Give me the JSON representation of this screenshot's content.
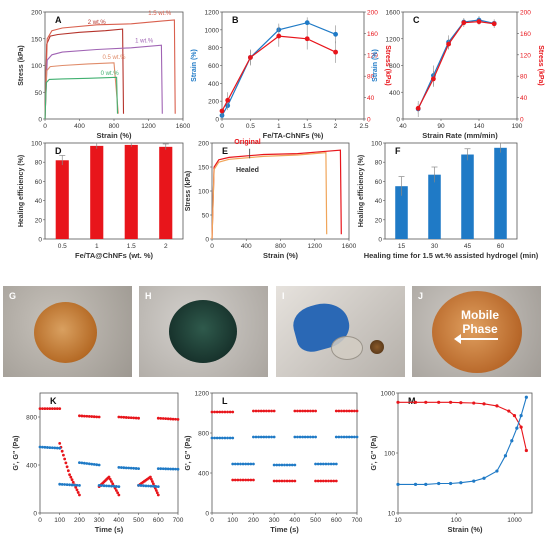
{
  "panel_labels": {
    "A": "A",
    "B": "B",
    "C": "C",
    "D": "D",
    "E": "E",
    "F": "F",
    "G": "G",
    "H": "H",
    "I": "I",
    "J": "J",
    "K": "K",
    "L": "L",
    "M": "M"
  },
  "colors": {
    "red": "#e8151b",
    "blue": "#1f7ac6",
    "orange": "#f0a55a",
    "darkred": "#b5332b"
  },
  "photos": {
    "mobile_phase_text": "Mobile\nPhase",
    "mobile_phase_line1": "Mobile",
    "mobile_phase_line2": "Phase"
  },
  "chart_data": [
    {
      "id": "A",
      "type": "line",
      "title": "",
      "xlabel": "Strain (%)",
      "ylabel": "Stress (kPa)",
      "xlim": [
        0,
        1600
      ],
      "ylim": [
        0,
        200
      ],
      "xticks": [
        0,
        400,
        800,
        1200,
        1600
      ],
      "yticks": [
        0,
        50,
        100,
        150,
        200
      ],
      "series": [
        {
          "name": "2 wt.%",
          "color": "#b5332b",
          "x": [
            0,
            20,
            60,
            150,
            400,
            700,
            900,
            910
          ],
          "y": [
            0,
            140,
            155,
            158,
            162,
            165,
            168,
            10
          ]
        },
        {
          "name": "1.5 wt.%",
          "color": "#d9604e",
          "x": [
            0,
            25,
            80,
            200,
            600,
            1000,
            1350,
            1500,
            1510
          ],
          "y": [
            0,
            150,
            165,
            170,
            176,
            178,
            183,
            185,
            10
          ]
        },
        {
          "name": "1 wt.%",
          "color": "#a064b4",
          "x": [
            0,
            25,
            80,
            200,
            600,
            1000,
            1350,
            1360
          ],
          "y": [
            0,
            110,
            120,
            125,
            130,
            133,
            138,
            10
          ]
        },
        {
          "name": "0.5 wt.%",
          "color": "#e08c6a",
          "x": [
            0,
            20,
            60,
            200,
            500,
            800,
            850
          ],
          "y": [
            0,
            90,
            98,
            100,
            103,
            105,
            10
          ]
        },
        {
          "name": "0 wt.%",
          "color": "#40b070",
          "x": [
            0,
            15,
            50,
            200,
            500,
            830,
            840
          ],
          "y": [
            0,
            68,
            74,
            75,
            76,
            78,
            10
          ]
        }
      ]
    },
    {
      "id": "B",
      "type": "line",
      "title": "",
      "xlabel": "Fe/TA-ChNFs (%)",
      "ylabel": "Strain (%)",
      "ylabel_right": "Stress (kPa)",
      "xlim": [
        0,
        2.5
      ],
      "ylim": [
        0,
        1200
      ],
      "ylim_right": [
        0,
        200
      ],
      "xticks": [
        0,
        0.5,
        1,
        1.5,
        2,
        2.5
      ],
      "xtick_labels": [
        "0",
        "0.5",
        "1",
        "1.5",
        "2",
        "2.5"
      ],
      "yticks": [
        0,
        200,
        400,
        600,
        800,
        1000,
        1200
      ],
      "yticks_right": [
        0,
        40,
        80,
        120,
        160,
        200
      ],
      "series": [
        {
          "name": "Strain",
          "axis": "left",
          "color": "#1f7ac6",
          "x": [
            0,
            0.1,
            0.5,
            1,
            1.5,
            2
          ],
          "y": [
            40,
            150,
            690,
            1000,
            1080,
            950
          ],
          "err": [
            30,
            50,
            80,
            70,
            60,
            100
          ]
        },
        {
          "name": "Stress",
          "axis": "right",
          "color": "#e8151b",
          "x": [
            0,
            0.1,
            0.5,
            1,
            1.5,
            2
          ],
          "y": [
            15,
            35,
            115,
            155,
            150,
            125
          ],
          "err": [
            10,
            15,
            15,
            20,
            20,
            20
          ]
        }
      ]
    },
    {
      "id": "C",
      "type": "line",
      "title": "",
      "xlabel": "Strain Rate (mm/min)",
      "ylabel": "Strain (%)",
      "ylabel_right": "Stress (kPa)",
      "xlim": [
        40,
        190
      ],
      "ylim": [
        0,
        1600
      ],
      "ylim_right": [
        0,
        200
      ],
      "xticks": [
        40,
        90,
        140,
        190
      ],
      "yticks": [
        0,
        400,
        800,
        1200,
        1600
      ],
      "yticks_right": [
        0,
        40,
        80,
        120,
        160,
        200
      ],
      "series": [
        {
          "name": "Strain",
          "axis": "left",
          "color": "#1f7ac6",
          "x": [
            60,
            80,
            100,
            120,
            140,
            160
          ],
          "y": [
            150,
            650,
            1150,
            1450,
            1480,
            1430
          ],
          "err": [
            120,
            150,
            100,
            60,
            60,
            60
          ]
        },
        {
          "name": "Stress",
          "axis": "right",
          "color": "#e8151b",
          "x": [
            60,
            80,
            100,
            120,
            140,
            160
          ],
          "y": [
            20,
            75,
            140,
            180,
            182,
            178
          ],
          "err": [
            10,
            15,
            10,
            8,
            6,
            8
          ]
        }
      ]
    },
    {
      "id": "D",
      "type": "bar",
      "title": "",
      "categories": [
        "0.5",
        "1",
        "1.5",
        "2"
      ],
      "values": [
        82,
        97,
        98,
        96
      ],
      "err": [
        5,
        3,
        2,
        3
      ],
      "xlabel": "Fe/TA@ChNFs (wt. %)",
      "ylabel": "Healing efficiency (%)",
      "ylim": [
        0,
        100
      ],
      "yticks": [
        0,
        20,
        40,
        60,
        80,
        100
      ],
      "color": "#e8151b"
    },
    {
      "id": "E",
      "type": "line",
      "title": "",
      "xlabel": "Strain (%)",
      "ylabel": "Stress (kPa)",
      "xlim": [
        0,
        1600
      ],
      "ylim": [
        0,
        200
      ],
      "xticks": [
        0,
        400,
        800,
        1200,
        1600
      ],
      "yticks": [
        0,
        50,
        100,
        150,
        200
      ],
      "annotations": [
        "Original",
        "Healed"
      ],
      "series": [
        {
          "name": "Original",
          "color": "#e8151b",
          "x": [
            0,
            25,
            80,
            200,
            600,
            1000,
            1350,
            1500,
            1510
          ],
          "y": [
            0,
            150,
            165,
            170,
            176,
            178,
            183,
            185,
            10
          ]
        },
        {
          "name": "Healed",
          "color": "#f0a55a",
          "x": [
            0,
            25,
            80,
            200,
            600,
            1000,
            1330,
            1340
          ],
          "y": [
            0,
            145,
            160,
            166,
            172,
            175,
            180,
            10
          ]
        }
      ]
    },
    {
      "id": "F",
      "type": "bar",
      "title": "",
      "categories": [
        "15",
        "30",
        "45",
        "60"
      ],
      "values": [
        55,
        67,
        88,
        95
      ],
      "err": [
        10,
        8,
        6,
        5
      ],
      "xlabel": "Healing time for 1.5 wt.% assisted hydrogel (min)",
      "ylabel": "Healing efficiency (%)",
      "ylim": [
        0,
        100
      ],
      "yticks": [
        0,
        20,
        40,
        60,
        80,
        100
      ],
      "color": "#1f7ac6"
    },
    {
      "id": "K",
      "type": "scatter",
      "title": "",
      "xlabel": "Time (s)",
      "ylabel": "G', G\" (Pa)",
      "xlim": [
        0,
        700
      ],
      "ylim": [
        0,
        1000
      ],
      "xticks": [
        0,
        100,
        200,
        300,
        400,
        500,
        600,
        700
      ],
      "yticks": [
        0,
        400,
        800
      ],
      "series": [
        {
          "name": "G'",
          "color": "#e8151b",
          "segments": [
            {
              "x": [
                0,
                100
              ],
              "y": [
                870,
                870
              ]
            },
            {
              "x": [
                100,
                150,
                200
              ],
              "y": [
                580,
                320,
                150
              ]
            },
            {
              "x": [
                200,
                300
              ],
              "y": [
                810,
                800
              ]
            },
            {
              "x": [
                300,
                350,
                400
              ],
              "y": [
                220,
                300,
                150
              ]
            },
            {
              "x": [
                400,
                500
              ],
              "y": [
                800,
                790
              ]
            },
            {
              "x": [
                500,
                560,
                600
              ],
              "y": [
                230,
                300,
                150
              ]
            },
            {
              "x": [
                600,
                700
              ],
              "y": [
                790,
                780
              ]
            }
          ]
        },
        {
          "name": "G\"",
          "color": "#1f7ac6",
          "segments": [
            {
              "x": [
                0,
                100
              ],
              "y": [
                550,
                540
              ]
            },
            {
              "x": [
                100,
                200
              ],
              "y": [
                240,
                230
              ]
            },
            {
              "x": [
                200,
                300
              ],
              "y": [
                420,
                400
              ]
            },
            {
              "x": [
                300,
                400
              ],
              "y": [
                230,
                220
              ]
            },
            {
              "x": [
                400,
                500
              ],
              "y": [
                380,
                370
              ]
            },
            {
              "x": [
                500,
                600
              ],
              "y": [
                230,
                220
              ]
            },
            {
              "x": [
                600,
                700
              ],
              "y": [
                370,
                365
              ]
            }
          ]
        }
      ]
    },
    {
      "id": "L",
      "type": "scatter",
      "title": "",
      "xlabel": "Time (s)",
      "ylabel": "G', G\" (Pa)",
      "xlim": [
        0,
        700
      ],
      "ylim": [
        0,
        1200
      ],
      "xticks": [
        0,
        100,
        200,
        300,
        400,
        500,
        600,
        700
      ],
      "yticks": [
        0,
        400,
        800,
        1200
      ],
      "series": [
        {
          "name": "G'",
          "color": "#e8151b",
          "segments": [
            {
              "x": [
                0,
                100
              ],
              "y": [
                1010,
                1010
              ]
            },
            {
              "x": [
                100,
                200
              ],
              "y": [
                330,
                330
              ]
            },
            {
              "x": [
                200,
                300
              ],
              "y": [
                1020,
                1020
              ]
            },
            {
              "x": [
                300,
                400
              ],
              "y": [
                320,
                320
              ]
            },
            {
              "x": [
                400,
                500
              ],
              "y": [
                1020,
                1020
              ]
            },
            {
              "x": [
                500,
                600
              ],
              "y": [
                320,
                320
              ]
            },
            {
              "x": [
                600,
                700
              ],
              "y": [
                1020,
                1020
              ]
            }
          ]
        },
        {
          "name": "G\"",
          "color": "#1f7ac6",
          "segments": [
            {
              "x": [
                0,
                100
              ],
              "y": [
                750,
                750
              ]
            },
            {
              "x": [
                100,
                200
              ],
              "y": [
                490,
                490
              ]
            },
            {
              "x": [
                200,
                300
              ],
              "y": [
                760,
                760
              ]
            },
            {
              "x": [
                300,
                400
              ],
              "y": [
                480,
                480
              ]
            },
            {
              "x": [
                400,
                500
              ],
              "y": [
                760,
                760
              ]
            },
            {
              "x": [
                500,
                600
              ],
              "y": [
                490,
                490
              ]
            },
            {
              "x": [
                600,
                700
              ],
              "y": [
                760,
                760
              ]
            }
          ]
        }
      ]
    },
    {
      "id": "M",
      "type": "scatter",
      "title": "",
      "log_x": true,
      "log_y": true,
      "xlabel": "Strain (%)",
      "ylabel": "G', G\" (Pa)",
      "xlim": [
        10,
        2000
      ],
      "ylim": [
        10,
        1000
      ],
      "xticks": [
        10,
        100,
        1000
      ],
      "yticks": [
        10,
        100,
        1000
      ],
      "series": [
        {
          "name": "G'",
          "color": "#e8151b",
          "x": [
            10,
            20,
            30,
            50,
            80,
            120,
            200,
            300,
            500,
            800,
            1000,
            1300,
            1600
          ],
          "y": [
            700,
            700,
            700,
            700,
            700,
            690,
            680,
            660,
            610,
            500,
            420,
            270,
            110
          ]
        },
        {
          "name": "G\"",
          "color": "#1f7ac6",
          "x": [
            10,
            20,
            30,
            50,
            80,
            120,
            200,
            300,
            500,
            700,
            900,
            1100,
            1300,
            1600
          ],
          "y": [
            30,
            30,
            30,
            31,
            31,
            32,
            34,
            38,
            50,
            90,
            160,
            260,
            420,
            850
          ]
        }
      ]
    }
  ]
}
